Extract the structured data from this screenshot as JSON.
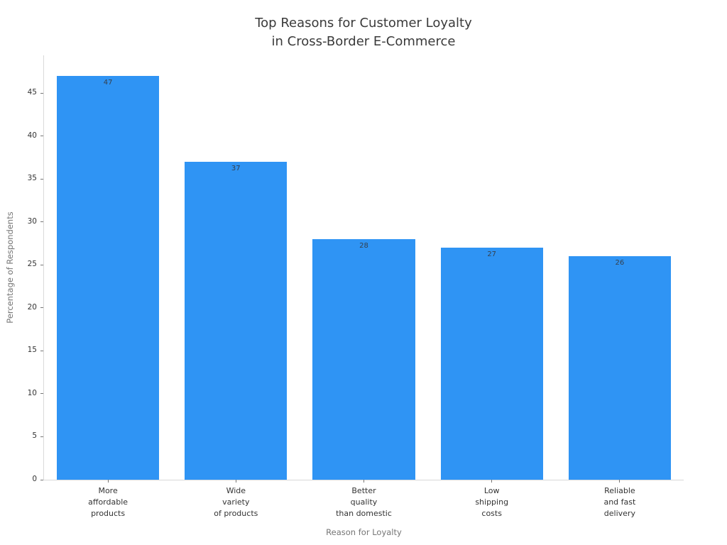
{
  "chart_data": {
    "type": "bar",
    "title": "Top Reasons for Customer Loyalty\nin Cross-Border E-Commerce",
    "categories": [
      "More\naffordable\nproducts",
      "Wide\nvariety\nof products",
      "Better\nquality\nthan domestic",
      "Low\nshipping\ncosts",
      "Reliable\nand fast\ndelivery"
    ],
    "values": [
      47,
      37,
      28,
      27,
      26
    ],
    "value_labels": [
      "47",
      "37",
      "28",
      "27",
      "26"
    ],
    "xlabel": "Reason for Loyalty",
    "ylabel": "Percentage of Respondents",
    "yticks": [
      0,
      5,
      10,
      15,
      20,
      25,
      30,
      35,
      40,
      45
    ],
    "ylim": [
      0,
      49.4
    ],
    "grid": false,
    "legend": false,
    "bar_color": "#2f94f4",
    "spine_color": "#d9d9d9",
    "tick_color": "#777777",
    "tick_label_color": "#333333",
    "axis_label_color": "#757575",
    "title_color": "#3a3a3a",
    "value_label_color": "#35404d"
  }
}
